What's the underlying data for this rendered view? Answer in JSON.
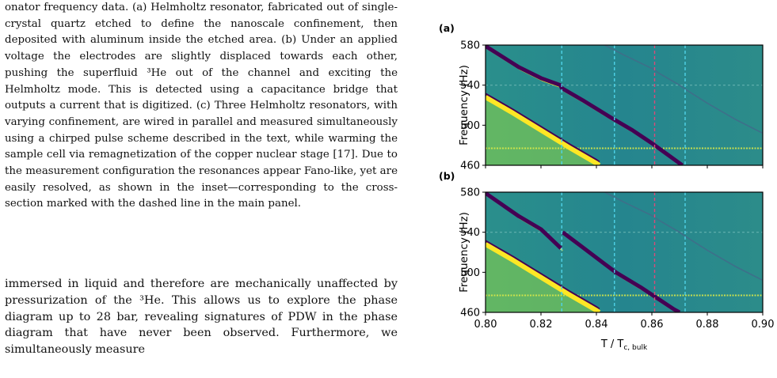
{
  "caption": {
    "text": "onator frequency data. (a) Helmholtz resonator, fabricated out of single-crystal quartz etched to define the nanoscale confinement, then deposited with aluminum inside the etched area. (b) Under an applied voltage the electrodes are slightly displaced towards each other, pushing the superfluid ³He out of the channel and exciting the Helmholtz mode. This is detected using a capacitance bridge that outputs a current that is digitized. (c) Three Helmholtz resonators, with varying confinement, are wired in parallel and measured simultaneously using a chirped pulse scheme described in the text, while warming the sample cell via remagnetization of the copper nuclear stage [17]. Due to the measurement configuration the resonances appear Fano-like, yet are easily resolved, as shown in the inset—corresponding to the cross-section marked with the dashed line in the main panel."
  },
  "body": {
    "text": "immersed in liquid and therefore are mechanically unaffected by pressurization of the ³He. This allows us to explore the phase diagram up to 28 bar, revealing signatures of PDW in the phase diagram that have never been observed. Furthermore, we simultaneously measure"
  },
  "chart_data": [
    {
      "type": "heatmap",
      "panel_label": "(a)",
      "ylabel": "Frequency (Hz)",
      "xlabel": "",
      "xlim": [
        0.8,
        0.9
      ],
      "ylim": [
        460,
        580
      ],
      "xticks": [
        0.8,
        0.82,
        0.84,
        0.86,
        0.88,
        0.9
      ],
      "yticks": [
        460,
        500,
        540,
        580
      ],
      "ytick_labels": [
        "460",
        "500",
        "540",
        "580"
      ],
      "show_xtick_labels": false,
      "dashed_vlines": [
        0.8275,
        0.8465,
        0.861,
        0.872
      ],
      "bands": [
        {
          "color": "#440154",
          "points": [
            [
              0.8,
              579
            ],
            [
              0.812,
              558
            ],
            [
              0.82,
              547
            ],
            [
              0.827,
              540
            ],
            [
              0.8275,
              537
            ],
            [
              0.835,
              525
            ],
            [
              0.845,
              508
            ],
            [
              0.853,
              495
            ],
            [
              0.86,
              482
            ],
            [
              0.866,
              470
            ],
            [
              0.871,
              460
            ]
          ]
        },
        {
          "color": "#fde725",
          "points": [
            [
              0.8,
              528
            ],
            [
              0.81,
              512
            ],
            [
              0.82,
              495
            ],
            [
              0.83,
              478
            ],
            [
              0.84,
              462
            ],
            [
              0.841,
              460
            ]
          ]
        },
        {
          "color": "#3e6f8a",
          "points": [
            [
              0.843,
              580
            ],
            [
              0.85,
              570
            ],
            [
              0.856,
              562
            ],
            [
              0.8605,
              556
            ],
            [
              0.8625,
              552
            ],
            [
              0.87,
              540
            ],
            [
              0.872,
              536
            ],
            [
              0.88,
              522
            ],
            [
              0.89,
              506
            ],
            [
              0.9,
              492
            ]
          ]
        }
      ],
      "hlines": [
        540,
        477
      ]
    },
    {
      "type": "heatmap",
      "panel_label": "(b)",
      "ylabel": "Frequency (Hz)",
      "xlabel": "T / T",
      "xlabel_sub": "c, bulk",
      "xlim": [
        0.8,
        0.9
      ],
      "ylim": [
        460,
        580
      ],
      "xticks": [
        0.8,
        0.82,
        0.84,
        0.86,
        0.88,
        0.9
      ],
      "xtick_labels": [
        "0.80",
        "0.82",
        "0.84",
        "0.86",
        "0.88",
        "0.90"
      ],
      "yticks": [
        460,
        500,
        540,
        580
      ],
      "ytick_labels": [
        "460",
        "500",
        "540",
        "580"
      ],
      "show_xtick_labels": true,
      "dashed_vlines": [
        0.8275,
        0.8465,
        0.861,
        0.872
      ],
      "bands": [
        {
          "color": "#440154",
          "points": [
            [
              0.8,
              579
            ],
            [
              0.812,
              556
            ],
            [
              0.82,
              543
            ],
            [
              0.8272,
              524
            ]
          ]
        },
        {
          "color": "#440154",
          "points": [
            [
              0.8278,
              540
            ],
            [
              0.835,
              525
            ],
            [
              0.846,
              502
            ],
            [
              0.847,
              500
            ],
            [
              0.856,
              485
            ],
            [
              0.862,
              474
            ],
            [
              0.868,
              463
            ],
            [
              0.87,
              460
            ]
          ]
        },
        {
          "color": "#fde725",
          "points": [
            [
              0.8,
              528
            ],
            [
              0.81,
              512
            ],
            [
              0.82,
              495
            ],
            [
              0.83,
              478
            ],
            [
              0.84,
              462
            ],
            [
              0.841,
              460
            ]
          ]
        },
        {
          "color": "#3e6f8a",
          "points": [
            [
              0.843,
              580
            ],
            [
              0.85,
              570
            ],
            [
              0.856,
              562
            ],
            [
              0.8605,
              556
            ],
            [
              0.8625,
              552
            ],
            [
              0.87,
              540
            ],
            [
              0.872,
              536
            ],
            [
              0.88,
              522
            ],
            [
              0.89,
              506
            ],
            [
              0.9,
              492
            ]
          ]
        }
      ],
      "hlines": [
        540,
        477
      ]
    }
  ]
}
